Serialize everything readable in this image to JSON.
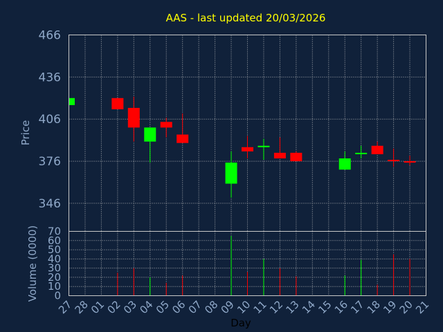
{
  "chart_data": {
    "type": "candlestick",
    "title": "AAS - last updated 20/03/2026",
    "xlabel": "Day",
    "price_panel": {
      "ylabel": "Price",
      "ylim": [
        326,
        466
      ],
      "yticks": [
        "346",
        "376",
        "406",
        "436",
        "466"
      ]
    },
    "volume_panel": {
      "ylabel": "Volume (0000)",
      "ylim": [
        0,
        70
      ],
      "yticks": [
        "0",
        "10",
        "20",
        "30",
        "40",
        "50",
        "60",
        "70"
      ]
    },
    "days": [
      "27",
      "28",
      "01",
      "02",
      "03",
      "04",
      "05",
      "06",
      "07",
      "08",
      "09",
      "10",
      "11",
      "12",
      "13",
      "14",
      "15",
      "16",
      "17",
      "18",
      "19",
      "20",
      "21"
    ],
    "candles": [
      {
        "day": "27",
        "open": 416,
        "high": 421,
        "low": 416,
        "close": 421,
        "volume": 0
      },
      {
        "day": "02",
        "open": 421,
        "high": 421,
        "low": 413,
        "close": 413,
        "volume": 25
      },
      {
        "day": "03",
        "open": 414,
        "high": 422,
        "low": 390,
        "close": 400,
        "volume": 30
      },
      {
        "day": "04",
        "open": 390,
        "high": 400,
        "low": 375,
        "close": 400,
        "volume": 20
      },
      {
        "day": "05",
        "open": 404,
        "high": 407,
        "low": 393,
        "close": 400,
        "volume": 14
      },
      {
        "day": "06",
        "open": 395,
        "high": 410,
        "low": 389,
        "close": 389,
        "volume": 22
      },
      {
        "day": "09",
        "open": 360,
        "high": 383,
        "low": 350,
        "close": 375,
        "volume": 65
      },
      {
        "day": "10",
        "open": 386,
        "high": 394,
        "low": 378,
        "close": 383,
        "volume": 26
      },
      {
        "day": "11",
        "open": 386,
        "high": 392,
        "low": 377,
        "close": 387,
        "volume": 40
      },
      {
        "day": "12",
        "open": 382,
        "high": 393,
        "low": 378,
        "close": 378,
        "volume": 30
      },
      {
        "day": "13",
        "open": 382,
        "high": 383,
        "low": 376,
        "close": 376,
        "volume": 21
      },
      {
        "day": "16",
        "open": 370,
        "high": 383,
        "low": 370,
        "close": 378,
        "volume": 22
      },
      {
        "day": "17",
        "open": 381,
        "high": 387,
        "low": 378,
        "close": 382,
        "volume": 39
      },
      {
        "day": "18",
        "open": 387,
        "high": 390,
        "low": 381,
        "close": 381,
        "volume": 12
      },
      {
        "day": "19",
        "open": 377,
        "high": 385,
        "low": 372,
        "close": 376,
        "volume": 45
      },
      {
        "day": "20",
        "open": 376,
        "high": 380,
        "low": 373,
        "close": 375,
        "volume": 40
      }
    ],
    "colors": {
      "up": "#00ff00",
      "down": "#ff0000",
      "title": "#ffff00",
      "axis_text": "#8fa8c8",
      "grid": "#c8c8c8",
      "background": "#10213a"
    },
    "grid": true
  }
}
